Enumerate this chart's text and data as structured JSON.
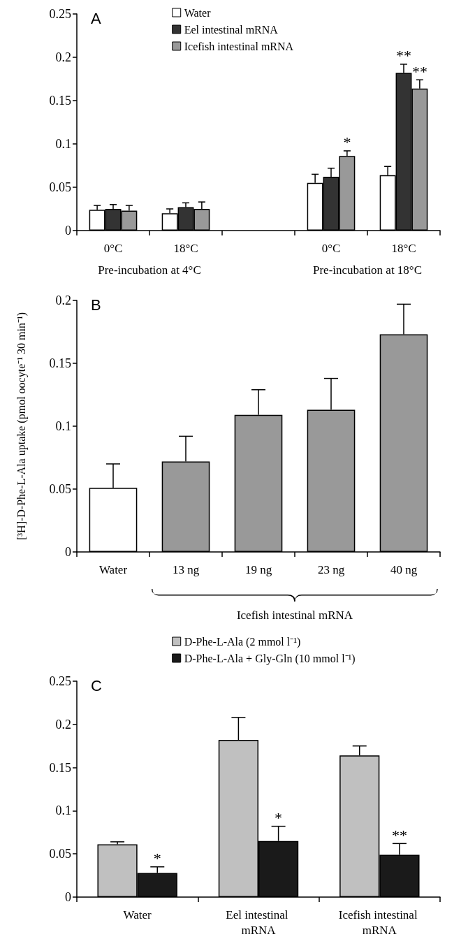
{
  "chart_data": [
    {
      "type": "bar",
      "title": "A",
      "categories": [
        "0°C",
        "18°C",
        null,
        "0°C",
        "18°C"
      ],
      "series": [
        {
          "name": "Water",
          "color": "#ffffff",
          "values": [
            0.024,
            0.02,
            null,
            0.055,
            0.064
          ],
          "errors": [
            0.005,
            0.005,
            null,
            0.01,
            0.01
          ]
        },
        {
          "name": "Eel intestinal mRNA",
          "color": "#333333",
          "values": [
            0.025,
            0.027,
            null,
            0.062,
            0.182
          ],
          "errors": [
            0.005,
            0.005,
            null,
            0.01,
            0.01
          ],
          "value_labels": [
            null,
            null,
            null,
            null,
            "**"
          ]
        },
        {
          "name": "Icefish intestinal mRNA",
          "color": "#999999",
          "values": [
            0.023,
            0.025,
            null,
            0.086,
            0.164
          ],
          "errors": [
            0.006,
            0.008,
            null,
            0.006,
            0.01
          ],
          "value_labels": [
            null,
            null,
            null,
            "*",
            "**"
          ]
        }
      ],
      "ylim": [
        0,
        0.25
      ],
      "yticks": [
        0,
        0.05,
        0.1,
        0.15,
        0.2,
        0.25
      ],
      "legend": "top",
      "annotations": [
        "Pre-incubation at 4°C",
        "Pre-incubation at 18°C"
      ]
    },
    {
      "type": "bar",
      "title": "B",
      "categories": [
        "Water",
        "13 ng",
        "19 ng",
        "23 ng",
        "40 ng"
      ],
      "values": [
        0.051,
        0.072,
        0.109,
        0.113,
        0.173
      ],
      "errors": [
        0.019,
        0.02,
        0.02,
        0.025,
        0.024
      ],
      "colors": [
        "#ffffff",
        "#999999",
        "#999999",
        "#999999",
        "#999999"
      ],
      "xlabel": "Icefish intestinal mRNA",
      "ylabel": "[³H]-D-Phe-L-Ala uptake (pmol oocyte⁻¹ 30 min⁻¹)",
      "ylim": [
        0,
        0.2
      ],
      "yticks": [
        0,
        0.05,
        0.1,
        0.15,
        0.2
      ]
    },
    {
      "type": "bar",
      "title": "C",
      "categories": [
        "Water",
        "Eel intestinal mRNA",
        "Icefish intestinal mRNA"
      ],
      "series": [
        {
          "name": "D-Phe-L-Ala (2 mmol l⁻¹)",
          "color": "#c0c0c0",
          "values": [
            0.061,
            0.182,
            0.164
          ],
          "errors": [
            0.003,
            0.026,
            0.011
          ]
        },
        {
          "name": "D-Phe-L-Ala + Gly-Gln (10 mmol l⁻¹)",
          "color": "#1a1a1a",
          "values": [
            0.028,
            0.065,
            0.049
          ],
          "errors": [
            0.007,
            0.017,
            0.013
          ],
          "value_labels": [
            "*",
            "*",
            "**"
          ]
        }
      ],
      "ylim": [
        0,
        0.25
      ],
      "yticks": [
        0,
        0.05,
        0.1,
        0.15,
        0.2,
        0.25
      ],
      "legend": "top"
    }
  ]
}
